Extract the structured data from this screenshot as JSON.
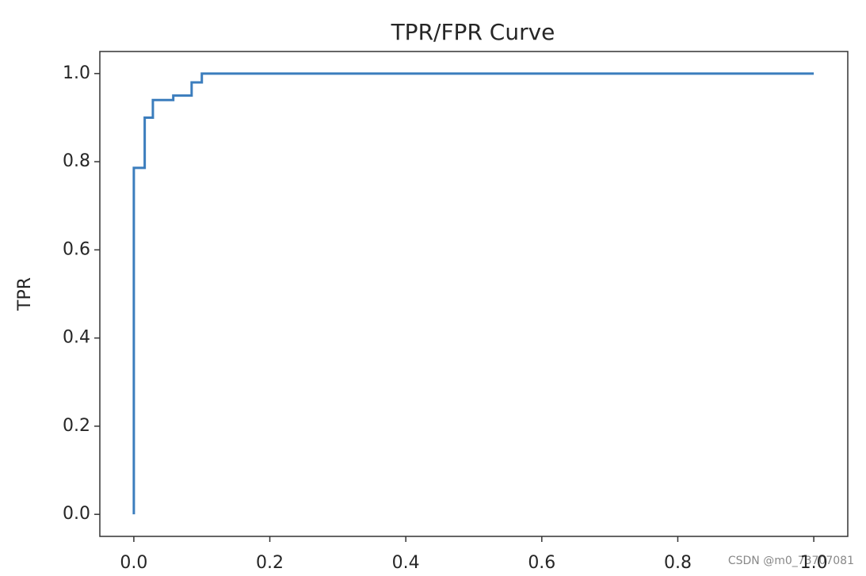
{
  "chart_data": {
    "type": "line",
    "title": "TPR/FPR Curve",
    "ylabel": "TPR",
    "x": [
      0,
      0,
      0.016,
      0.016,
      0.028,
      0.028,
      0.058,
      0.058,
      0.085,
      0.085,
      0.1,
      0.1,
      1
    ],
    "values": [
      0,
      0.786,
      0.786,
      0.9,
      0.9,
      0.94,
      0.94,
      0.95,
      0.95,
      0.98,
      0.98,
      1,
      1
    ],
    "color": "#3b7dbd",
    "xlim": [
      -0.05,
      1.05
    ],
    "ylim": [
      -0.05,
      1.05
    ],
    "xticks": [
      {
        "value": 0,
        "label": "0.0"
      },
      0.2,
      0.4,
      0.6,
      0.8,
      {
        "value": 1,
        "label": "1.0"
      }
    ],
    "yticks": [
      {
        "value": 0,
        "label": "0.0"
      },
      0.2,
      0.4,
      0.6,
      0.8,
      {
        "value": 1,
        "label": "1.0"
      }
    ],
    "grid": false,
    "watermark": "CSDN @m0_73707081"
  }
}
